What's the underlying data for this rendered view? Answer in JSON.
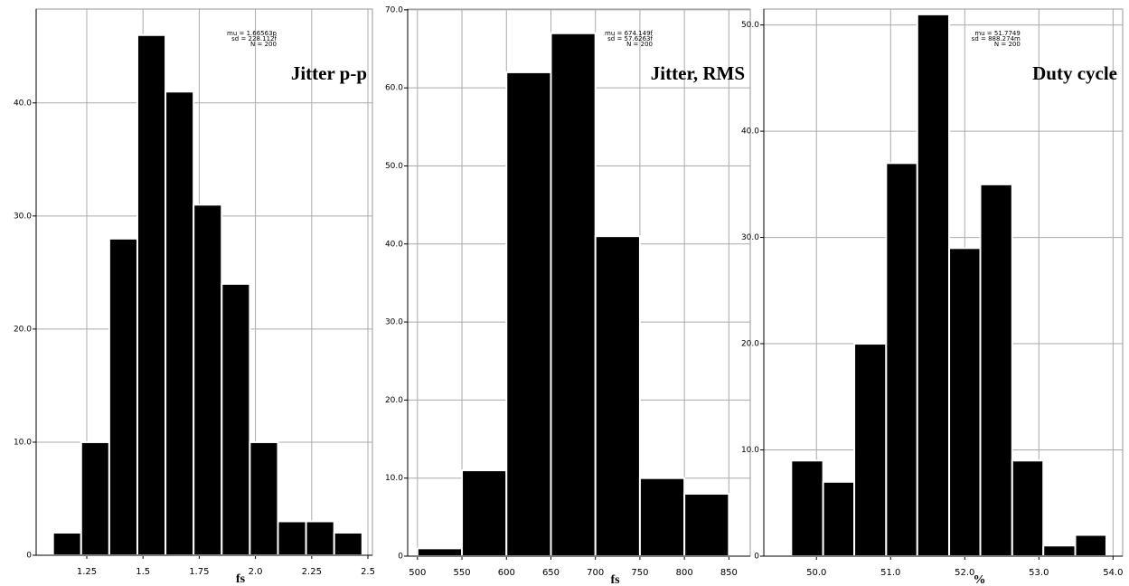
{
  "chart_data": [
    {
      "type": "histogram",
      "title": "Jitter p-p",
      "x_label": "fs",
      "annotations": [
        "mu = 1.66563p",
        "sd = 228.112f",
        "N = 200"
      ],
      "bins": [
        1.1,
        1.225,
        1.35,
        1.475,
        1.6,
        1.725,
        1.85,
        1.975,
        2.1,
        2.225,
        2.35,
        2.475
      ],
      "values": [
        2,
        10,
        28,
        46,
        41,
        31,
        24,
        10,
        3,
        3,
        2
      ],
      "color": "#000000",
      "xlim": [
        1.025,
        2.52
      ],
      "xticks": [
        1.25,
        1.5,
        1.75,
        {
          "value": 2,
          "label": "2.0"
        },
        2.25,
        2.5
      ],
      "ylim": [
        0,
        48.3
      ],
      "yticks": [
        0,
        {
          "value": 10,
          "label": "10.0"
        },
        {
          "value": 20,
          "label": "20.0"
        },
        {
          "value": 30,
          "label": "30.0"
        },
        {
          "value": 40,
          "label": "40.0"
        }
      ],
      "grid": true
    },
    {
      "type": "histogram",
      "title": "Jitter, RMS",
      "x_label": "fs",
      "annotations": [
        "mu = 674.149f",
        "sd = 57.6263f",
        "N = 200"
      ],
      "bins": [
        500,
        550,
        600,
        650,
        700,
        750,
        800,
        850
      ],
      "values": [
        1,
        11,
        62,
        67,
        41,
        10,
        8
      ],
      "color": "#000000",
      "xlim": [
        489,
        874
      ],
      "xticks": [
        500,
        550,
        600,
        650,
        700,
        750,
        800,
        850
      ],
      "ylim": [
        0,
        70.1
      ],
      "yticks": [
        0,
        {
          "value": 10,
          "label": "10.0"
        },
        {
          "value": 20,
          "label": "20.0"
        },
        {
          "value": 30,
          "label": "30.0"
        },
        {
          "value": 40,
          "label": "40.0"
        },
        {
          "value": 50,
          "label": "50.0"
        },
        {
          "value": 60,
          "label": "60.0"
        },
        {
          "value": 70,
          "label": "70.0"
        }
      ],
      "grid": true
    },
    {
      "type": "histogram",
      "title": "Duty cycle",
      "x_label": "%",
      "annotations": [
        "mu = 51.7749",
        "sd = 888.274m",
        "N = 200"
      ],
      "bins": [
        49.66,
        50.09,
        50.51,
        50.94,
        51.36,
        51.79,
        52.21,
        52.64,
        53.06,
        53.49,
        53.91
      ],
      "values": [
        9,
        7,
        20,
        37,
        51,
        29,
        35,
        9,
        1,
        2
      ],
      "color": "#000000",
      "xlim": [
        49.29,
        54.13
      ],
      "xticks": [
        {
          "value": 50,
          "label": "50.0"
        },
        {
          "value": 51,
          "label": "51.0"
        },
        {
          "value": 52,
          "label": "52.0"
        },
        {
          "value": 53,
          "label": "53.0"
        },
        {
          "value": 54,
          "label": "54.0"
        }
      ],
      "ylim": [
        0,
        51.5
      ],
      "yticks": [
        0,
        {
          "value": 10,
          "label": "10.0"
        },
        {
          "value": 20,
          "label": "20.0"
        },
        {
          "value": 30,
          "label": "30.0"
        },
        {
          "value": 40,
          "label": "40.0"
        },
        {
          "value": 50,
          "label": "50.0"
        }
      ],
      "grid": true
    }
  ]
}
